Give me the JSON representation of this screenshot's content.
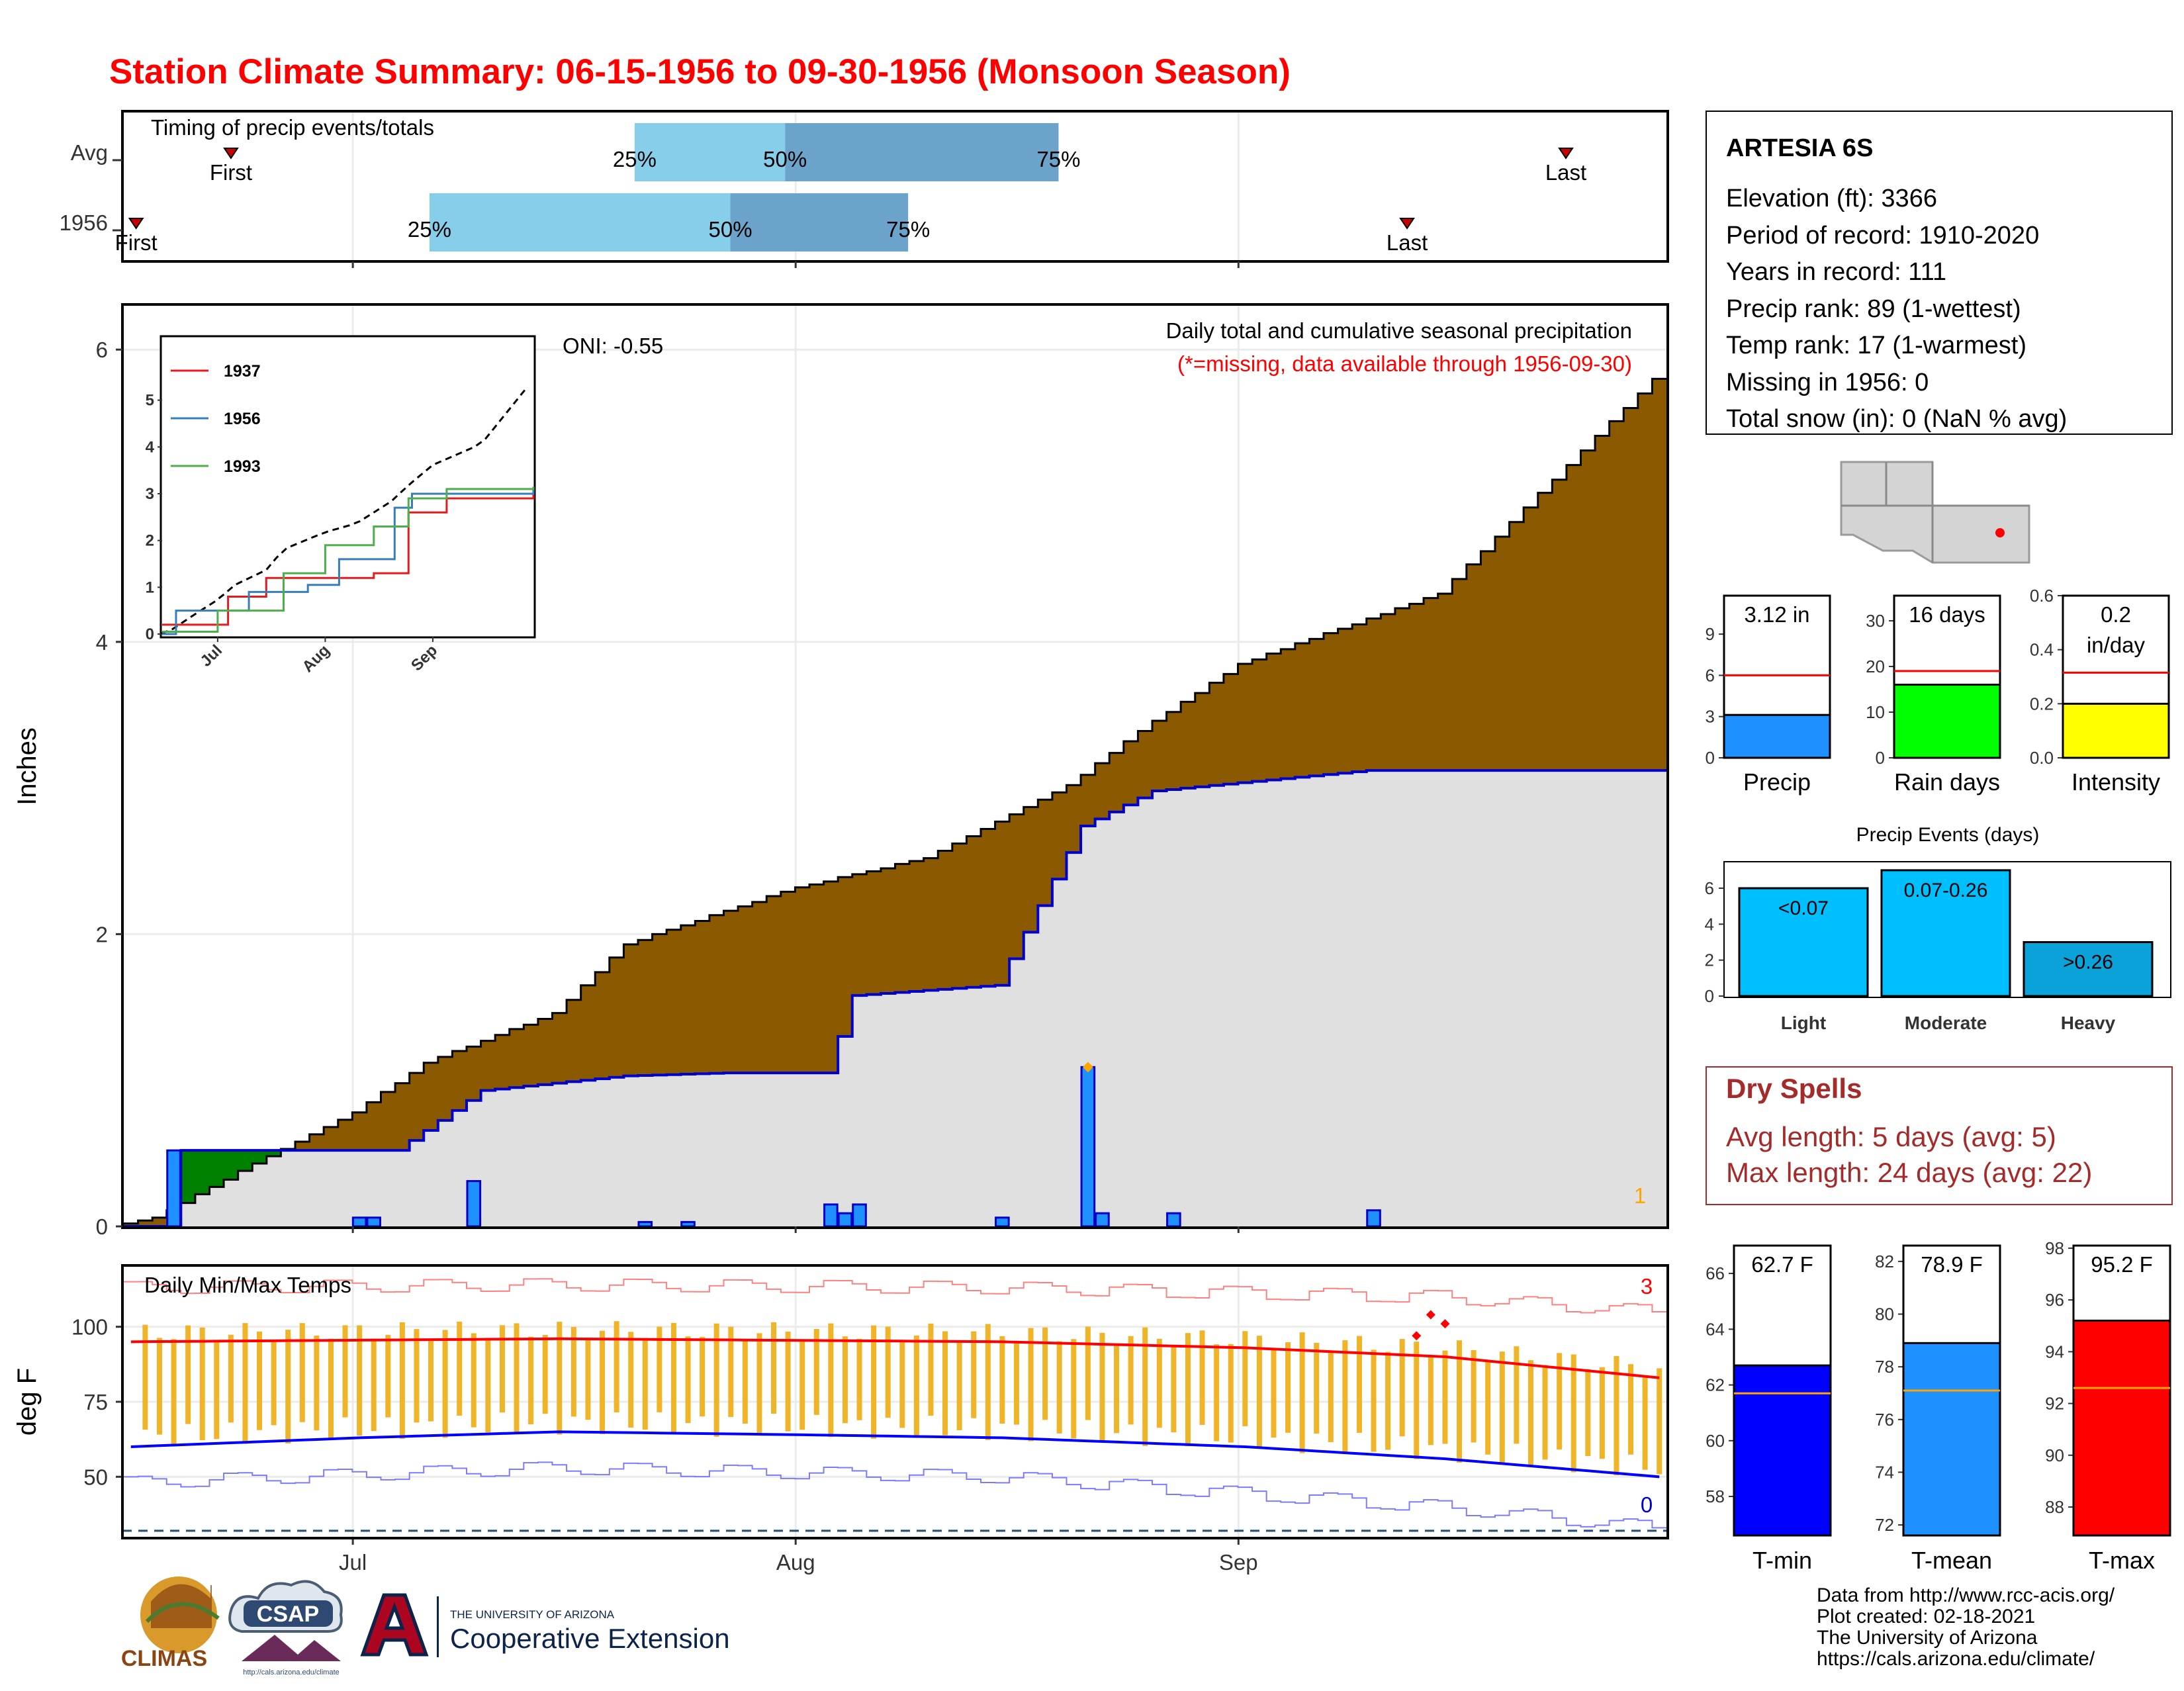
{
  "title": "Station Climate Summary: 06-15-1956 to 09-30-1956 (Monsoon Season)",
  "months": [
    "Jul",
    "Aug",
    "Sep"
  ],
  "colors": {
    "title": "#ff0000",
    "accum": "#8b5a00",
    "obs": "#e0e0e0",
    "ahead": "#008000",
    "bar": "#1e90ff",
    "timing_light": "#87ceeb",
    "timing_dark": "#6ba3cb",
    "tmin": "#0000ff",
    "tmean": "#1e90ff",
    "tmax": "#ff0000",
    "temp_bar": "#f0b428",
    "dry": "#a52a2a"
  },
  "timing": {
    "title": "Timing of precip events/totals",
    "row_labels": [
      "Avg",
      "1956"
    ],
    "pct_labels": [
      "25%",
      "50%",
      "75%"
    ],
    "first_label": "First",
    "last_label": "Last",
    "avg": {
      "first": "Jun 21",
      "q25": "Jul 21",
      "q50": "Aug 1",
      "q75": "Aug 21",
      "last": "Sep 30"
    },
    "y1956": {
      "first": "Jun 16",
      "q25": "Jul 6",
      "q50": "Jul 28",
      "q75": "Aug 10",
      "last": "Sep 15"
    }
  },
  "precip_panel": {
    "ylabel": "Inches",
    "yticks": [
      "0",
      "2",
      "4",
      "6"
    ],
    "title": "Daily total and cumulative seasonal precipitation",
    "subtitle": "(*=missing, data available through 1956-09-30)",
    "oni": "ONI: -0.55",
    "count_label": "1"
  },
  "inset": {
    "yticks": [
      "0",
      "1",
      "2",
      "3",
      "4",
      "5"
    ],
    "months": [
      "Jul",
      "Aug",
      "Sep"
    ],
    "legend": [
      {
        "name": "1937",
        "color": "#e41a1c"
      },
      {
        "name": "1956",
        "color": "#377eb8"
      },
      {
        "name": "1993",
        "color": "#4daf4a"
      }
    ]
  },
  "temp_panel": {
    "ylabel": "deg F",
    "title": "Daily Min/Max Temps",
    "yticks": [
      "50",
      "75",
      "100"
    ],
    "count_high": "3",
    "count_low": "0"
  },
  "station": {
    "name": "ARTESIA 6S",
    "lines": [
      "Elevation (ft): 3366",
      "Period of record: 1910-2020",
      "Years in record: 111",
      "Precip rank: 89 (1-wettest)",
      "Temp rank: 17 (1-warmest)",
      "Missing in 1956: 0",
      "Total snow (in): 0 (NaN % avg)"
    ]
  },
  "summary_bars": [
    {
      "label": "Precip",
      "value_text": "3.12 in",
      "value": 3.12,
      "avg": 6.0,
      "ymax": 11.8,
      "ticks": [
        "0",
        "3",
        "6",
        "9"
      ],
      "tickvals": [
        0,
        3,
        6,
        9
      ],
      "color": "#1e90ff"
    },
    {
      "label": "Rain days",
      "value_text": "16 days",
      "value": 16,
      "avg": 19,
      "ymax": 35.5,
      "ticks": [
        "0",
        "10",
        "20",
        "30"
      ],
      "tickvals": [
        0,
        10,
        20,
        30
      ],
      "color": "#00ff00"
    },
    {
      "label": "Intensity",
      "value_text": "0.2",
      "value_text2": "in/day",
      "value": 0.2,
      "avg": 0.315,
      "ymax": 0.6,
      "ticks": [
        "0.0",
        "0.2",
        "0.4",
        "0.6"
      ],
      "tickvals": [
        0,
        0.2,
        0.4,
        0.6
      ],
      "color": "#ffff00"
    }
  ],
  "events": {
    "title": "Precip Events (days)",
    "yticks": [
      "0",
      "2",
      "4",
      "6"
    ],
    "bars": [
      {
        "label": "Light",
        "text": "<0.07",
        "value": 6,
        "color": "#00bfff"
      },
      {
        "label": "Moderate",
        "text": "0.07-0.26",
        "value": 7,
        "color": "#00bfff"
      },
      {
        "label": "Heavy",
        "text": ">0.26",
        "value": 3,
        "color": "#0aa2d8"
      }
    ]
  },
  "dry_spells": {
    "title": "Dry Spells",
    "lines": [
      "Avg length: 5 days (avg: 5)",
      "Max length: 24 days (avg: 22)"
    ]
  },
  "temp_bars": [
    {
      "label": "T-min",
      "value_text": "62.7 F",
      "value": 62.7,
      "avg": 61.7,
      "ymin": 56.6,
      "ymax": 67.0,
      "ticks": [
        "58",
        "60",
        "62",
        "64",
        "66"
      ],
      "tickvals": [
        58,
        60,
        62,
        64,
        66
      ],
      "color": "#0000ff"
    },
    {
      "label": "T-mean",
      "value_text": "78.9 F",
      "value": 78.9,
      "avg": 77.1,
      "ymin": 71.6,
      "ymax": 82.6,
      "ticks": [
        "72",
        "74",
        "76",
        "78",
        "80",
        "82"
      ],
      "tickvals": [
        72,
        74,
        76,
        78,
        80,
        82
      ],
      "color": "#1e90ff"
    },
    {
      "label": "T-max",
      "value_text": "95.2 F",
      "value": 95.2,
      "avg": 92.6,
      "ymin": 86.9,
      "ymax": 98.1,
      "ticks": [
        "88",
        "90",
        "92",
        "94",
        "96",
        "98"
      ],
      "tickvals": [
        88,
        90,
        92,
        94,
        96,
        98
      ],
      "color": "#ff0000"
    }
  ],
  "footer": [
    "Data from http://www.rcc-acis.org/",
    "Plot created: 02-18-2021",
    "The University of Arizona",
    "https://cals.arizona.edu/climate/"
  ],
  "logos": {
    "climas": "CLIMAS",
    "csap": "CSAP",
    "csap_url": "http://cals.arizona.edu/climate",
    "ua_line1": "THE UNIVERSITY OF ARIZONA",
    "ua_line2": "Cooperative Extension"
  },
  "chart_data": [
    {
      "type": "area",
      "title": "Daily total and cumulative seasonal precipitation",
      "ylabel": "Inches",
      "ylim": [
        0,
        6.3
      ],
      "x_range": [
        "1956-06-15",
        "1956-09-30"
      ],
      "series": [
        {
          "name": "",
          "x": [
            "06-15",
            "06-17",
            "06-25",
            "07-01",
            "07-06",
            "07-15",
            "07-20",
            "08-01",
            "08-10",
            "08-20",
            "08-25",
            "09-01",
            "09-15",
            "09-30"
          ],
          "values": [
            0.02,
            0.06,
            0.48,
            0.78,
            1.12,
            1.46,
            1.93,
            2.32,
            2.52,
            3.02,
            3.39,
            3.85,
            4.33,
            5.8
          ]
        },
        {
          "name": "",
          "x": [
            "06-15",
            "06-18",
            "06-19",
            "07-04",
            "07-10",
            "07-20",
            "07-27",
            "08-03",
            "08-04",
            "08-05",
            "08-15",
            "08-21",
            "08-26",
            "09-10",
            "09-30"
          ],
          "values": [
            0.0,
            0.0,
            0.52,
            0.52,
            0.93,
            1.03,
            1.05,
            1.05,
            1.3,
            1.58,
            1.65,
            2.74,
            2.98,
            3.12,
            3.12
          ]
        },
        {
          "name": "",
          "x": [
            "06-18",
            "07-01",
            "07-02",
            "07-09",
            "07-21",
            "07-24",
            "08-03",
            "08-04",
            "08-05",
            "08-15",
            "08-21",
            "08-22",
            "08-27",
            "09-10"
          ],
          "values": [
            0.52,
            0.06,
            0.06,
            0.31,
            0.03,
            0.03,
            0.15,
            0.09,
            0.15,
            0.06,
            1.09,
            0.09,
            0.09,
            0.11
          ]
        }
      ]
    },
    {
      "type": "line",
      "ylim": [
        0,
        5.5
      ],
      "series": [
        {
          "name": "1937",
          "x": [
            "06-15",
            "07-04",
            "07-15",
            "08-15",
            "08-25",
            "09-05",
            "09-30"
          ],
          "values": [
            0.2,
            0.8,
            1.2,
            1.3,
            2.6,
            2.9,
            3.0
          ]
        },
        {
          "name": "1956",
          "x": [
            "06-15",
            "06-19",
            "07-10",
            "07-27",
            "08-05",
            "08-21",
            "08-26",
            "09-30"
          ],
          "values": [
            0.0,
            0.5,
            0.9,
            1.05,
            1.6,
            2.7,
            3.0,
            3.1
          ]
        },
        {
          "name": "1993",
          "x": [
            "06-15",
            "07-01",
            "07-20",
            "08-01",
            "08-15",
            "08-25",
            "09-05",
            "09-30"
          ],
          "values": [
            0.05,
            0.5,
            1.3,
            1.9,
            2.3,
            2.9,
            3.1,
            3.15
          ]
        }
      ]
    },
    {
      "type": "line",
      "title": "Daily Min/Max Temps",
      "ylabel": "deg F",
      "ylim": [
        30,
        120
      ],
      "series": [
        {
          "name": "",
          "x": [
            "06-15",
            "07-15",
            "08-15",
            "09-01",
            "09-15",
            "09-30"
          ],
          "values": [
            95,
            96,
            95,
            93,
            90,
            83
          ]
        },
        {
          "name": "",
          "x": [
            "06-15",
            "07-01",
            "07-15",
            "08-01",
            "08-15",
            "09-01",
            "09-15",
            "09-30"
          ],
          "values": [
            60,
            63,
            65,
            64,
            63,
            60,
            56,
            50
          ]
        },
        {
          "name": "",
          "x": [
            "06-15",
            "07-15",
            "08-15",
            "09-15",
            "09-30"
          ],
          "values": [
            113,
            114,
            113,
            110,
            105
          ]
        },
        {
          "name": "",
          "x": [
            "06-15",
            "07-15",
            "08-15",
            "09-15",
            "09-30"
          ],
          "values": [
            48,
            53,
            50,
            40,
            33
          ]
        }
      ]
    },
    {
      "type": "bar",
      "title": "Precip Events (days)",
      "categories": [
        "Light",
        "Moderate",
        "Heavy"
      ],
      "values": [
        6,
        7,
        3
      ]
    }
  ]
}
